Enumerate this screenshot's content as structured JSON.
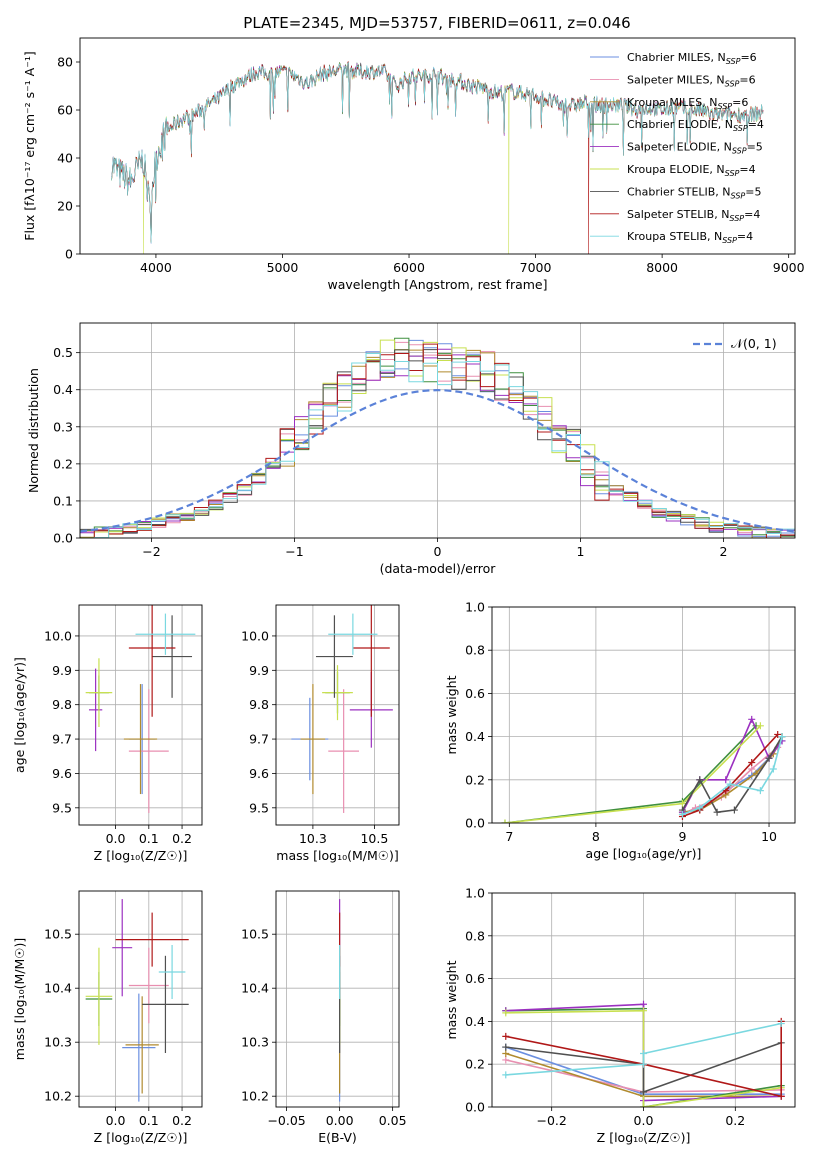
{
  "title": "PLATE=2345, MJD=53757, FIBERID=0611, z=0.046",
  "colors": [
    "#6b8fe0",
    "#e88fb0",
    "#b08a2e",
    "#3f8f3f",
    "#9b30c0",
    "#c8e050",
    "#505050",
    "#b01818",
    "#7ad8e0"
  ],
  "chart_data": [
    {
      "id": "spectrum",
      "type": "line",
      "xlabel": "wavelength [Angstrom, rest frame]",
      "ylabel": "Flux [fλ10⁻¹⁷ erg cm⁻² s⁻¹ A⁻¹]",
      "xlim": [
        3400,
        9050
      ],
      "ylim": [
        0,
        90
      ],
      "xticks": [
        4000,
        5000,
        6000,
        7000,
        8000,
        9000
      ],
      "yticks": [
        0,
        20,
        40,
        60,
        80
      ],
      "continuum": [
        [
          3650,
          38
        ],
        [
          3700,
          34
        ],
        [
          3800,
          30
        ],
        [
          3850,
          35
        ],
        [
          3900,
          40
        ],
        [
          3950,
          20
        ],
        [
          4000,
          40
        ],
        [
          4050,
          48
        ],
        [
          4100,
          52
        ],
        [
          4200,
          56
        ],
        [
          4300,
          58
        ],
        [
          4400,
          62
        ],
        [
          4500,
          65
        ],
        [
          4600,
          70
        ],
        [
          4700,
          73
        ],
        [
          4800,
          76
        ],
        [
          4900,
          75
        ],
        [
          5000,
          76
        ],
        [
          5100,
          74
        ],
        [
          5200,
          71
        ],
        [
          5300,
          75
        ],
        [
          5400,
          76
        ],
        [
          5500,
          77
        ],
        [
          5600,
          76
        ],
        [
          5700,
          76
        ],
        [
          5800,
          76
        ],
        [
          5900,
          70
        ],
        [
          6000,
          74
        ],
        [
          6100,
          74
        ],
        [
          6200,
          75
        ],
        [
          6300,
          73
        ],
        [
          6400,
          72
        ],
        [
          6500,
          70
        ],
        [
          6600,
          69
        ],
        [
          6700,
          67
        ],
        [
          6800,
          68
        ],
        [
          6900,
          67
        ],
        [
          7000,
          66
        ],
        [
          7100,
          64
        ],
        [
          7200,
          62
        ],
        [
          7300,
          62
        ],
        [
          7400,
          63
        ],
        [
          7500,
          62
        ],
        [
          7600,
          62
        ],
        [
          7700,
          62
        ],
        [
          7800,
          60
        ],
        [
          7900,
          61
        ],
        [
          8000,
          60
        ],
        [
          8100,
          61
        ],
        [
          8200,
          60
        ],
        [
          8300,
          60
        ],
        [
          8400,
          58
        ],
        [
          8500,
          58
        ],
        [
          8600,
          58
        ],
        [
          8700,
          58
        ],
        [
          8800,
          59
        ]
      ],
      "dropouts": [
        {
          "series": 5,
          "x": 3900
        },
        {
          "series": 5,
          "x": 6790
        },
        {
          "series": 7,
          "x": 7420
        }
      ],
      "series": [
        {
          "label": "Chabrier MILES, N",
          "ssp": "SSP",
          "eq": "=6"
        },
        {
          "label": "Salpeter MILES, N",
          "ssp": "SSP",
          "eq": "=6"
        },
        {
          "label": "Kroupa MILES, N",
          "ssp": "SSP",
          "eq": "=6"
        },
        {
          "label": "Chabrier ELODIE, N",
          "ssp": "SSP",
          "eq": "=4"
        },
        {
          "label": "Salpeter ELODIE, N",
          "ssp": "SSP",
          "eq": "=5"
        },
        {
          "label": "Kroupa ELODIE, N",
          "ssp": "SSP",
          "eq": "=4"
        },
        {
          "label": "Chabrier STELIB, N",
          "ssp": "SSP",
          "eq": "=5"
        },
        {
          "label": "Salpeter STELIB, N",
          "ssp": "SSP",
          "eq": "=4"
        },
        {
          "label": "Kroupa STELIB, N",
          "ssp": "SSP",
          "eq": "=4"
        }
      ]
    },
    {
      "id": "residuals",
      "type": "histogram",
      "xlabel": "(data-model)/error",
      "ylabel": "Normed distribution",
      "xlim": [
        -2.5,
        2.5
      ],
      "ylim": [
        0,
        0.58
      ],
      "xticks": [
        -2,
        -1,
        0,
        1,
        2
      ],
      "yticks": [
        0.0,
        0.1,
        0.2,
        0.3,
        0.4,
        0.5
      ],
      "legend": "𝒩(0, 1)",
      "bin_edges_from": -2.5,
      "bin_width": 0.1,
      "base_heights": [
        0.01,
        0.015,
        0.02,
        0.025,
        0.03,
        0.04,
        0.05,
        0.06,
        0.07,
        0.09,
        0.11,
        0.13,
        0.16,
        0.2,
        0.24,
        0.28,
        0.32,
        0.36,
        0.4,
        0.44,
        0.47,
        0.48,
        0.49,
        0.48,
        0.47,
        0.47,
        0.46,
        0.46,
        0.45,
        0.43,
        0.4,
        0.36,
        0.32,
        0.28,
        0.24,
        0.2,
        0.16,
        0.13,
        0.11,
        0.09,
        0.07,
        0.06,
        0.05,
        0.04,
        0.03,
        0.025,
        0.02,
        0.015,
        0.012,
        0.01
      ]
    },
    {
      "id": "age_vs_Z",
      "type": "errorbar",
      "xlabel": "Z [log₁₀(Z/Z☉)]",
      "ylabel": "age  [log₁₀(age/yr)]",
      "xlim": [
        -0.11,
        0.26
      ],
      "ylim": [
        9.45,
        10.09
      ],
      "xticks": [
        0.0,
        0.1,
        0.2
      ],
      "yticks": [
        9.5,
        9.6,
        9.7,
        9.8,
        9.9,
        10.0
      ],
      "points": [
        {
          "x": 0.08,
          "y": 9.7,
          "xe": 0.04,
          "ye": 0.16
        },
        {
          "x": 0.1,
          "y": 9.665,
          "xe": 0.06,
          "ye": 0.18
        },
        {
          "x": 0.075,
          "y": 9.7,
          "xe": 0.05,
          "ye": 0.16
        },
        {
          "x": -0.05,
          "y": 9.835,
          "xe": 0.03,
          "ye": 0.05
        },
        {
          "x": -0.06,
          "y": 9.785,
          "xe": 0.02,
          "ye": 0.12
        },
        {
          "x": -0.05,
          "y": 9.835,
          "xe": 0.04,
          "ye": 0.1
        },
        {
          "x": 0.17,
          "y": 9.94,
          "xe": 0.06,
          "ye": 0.12
        },
        {
          "x": 0.11,
          "y": 9.965,
          "xe": 0.07,
          "ye": 0.2
        },
        {
          "x": 0.15,
          "y": 10.005,
          "xe": 0.09,
          "ye": 0.06
        }
      ]
    },
    {
      "id": "age_vs_mass",
      "type": "errorbar",
      "xlabel": "mass [log₁₀(M/M☉)]",
      "ylabel": "",
      "xlim": [
        10.18,
        10.58
      ],
      "ylim": [
        9.45,
        10.09
      ],
      "xticks": [
        10.3,
        10.5
      ],
      "yticks": [
        9.5,
        9.6,
        9.7,
        9.8,
        9.9,
        10.0
      ],
      "points": [
        {
          "x": 10.29,
          "y": 9.7,
          "xe": 0.06,
          "ye": 0.12
        },
        {
          "x": 10.4,
          "y": 9.665,
          "xe": 0.05,
          "ye": 0.18
        },
        {
          "x": 10.3,
          "y": 9.7,
          "xe": 0.04,
          "ye": 0.16
        },
        {
          "x": 10.38,
          "y": 9.835,
          "xe": 0.04,
          "ye": 0.06
        },
        {
          "x": 10.49,
          "y": 9.785,
          "xe": 0.07,
          "ye": 0.11
        },
        {
          "x": 10.38,
          "y": 9.835,
          "xe": 0.05,
          "ye": 0.08
        },
        {
          "x": 10.37,
          "y": 9.94,
          "xe": 0.06,
          "ye": 0.12
        },
        {
          "x": 10.49,
          "y": 9.965,
          "xe": 0.06,
          "ye": 0.2
        },
        {
          "x": 10.43,
          "y": 10.005,
          "xe": 0.08,
          "ye": 0.06
        }
      ]
    },
    {
      "id": "weight_vs_age",
      "type": "line",
      "xlabel": "age  [log₁₀(age/yr)]",
      "ylabel": "mass weight",
      "xlim": [
        6.8,
        10.3
      ],
      "ylim": [
        0.0,
        1.0
      ],
      "xticks": [
        7,
        8,
        9,
        10
      ],
      "yticks": [
        0.0,
        0.2,
        0.4,
        0.6,
        0.8,
        1.0
      ],
      "series": [
        [
          [
            9.0,
            0.05
          ],
          [
            9.2,
            0.06
          ],
          [
            9.5,
            0.15
          ],
          [
            9.8,
            0.22
          ],
          [
            10.0,
            0.3
          ],
          [
            10.15,
            0.38
          ]
        ],
        [
          [
            9.0,
            0.04
          ],
          [
            9.15,
            0.07
          ],
          [
            9.45,
            0.12
          ],
          [
            9.8,
            0.25
          ],
          [
            10.1,
            0.35
          ]
        ],
        [
          [
            9.0,
            0.05
          ],
          [
            9.2,
            0.06
          ],
          [
            9.5,
            0.13
          ],
          [
            9.85,
            0.23
          ],
          [
            10.05,
            0.32
          ],
          [
            10.15,
            0.4
          ]
        ],
        [
          [
            6.95,
            0.0
          ],
          [
            9.0,
            0.1
          ],
          [
            9.85,
            0.45
          ]
        ],
        [
          [
            9.0,
            0.05
          ],
          [
            9.2,
            0.2
          ],
          [
            9.5,
            0.2
          ],
          [
            9.8,
            0.48
          ],
          [
            10.0,
            0.3
          ],
          [
            10.15,
            0.38
          ]
        ],
        [
          [
            6.95,
            0.0
          ],
          [
            9.0,
            0.09
          ],
          [
            9.9,
            0.45
          ]
        ],
        [
          [
            9.0,
            0.06
          ],
          [
            9.2,
            0.2
          ],
          [
            9.4,
            0.05
          ],
          [
            9.6,
            0.06
          ],
          [
            10.0,
            0.3
          ],
          [
            10.15,
            0.4
          ]
        ],
        [
          [
            9.0,
            0.03
          ],
          [
            9.2,
            0.06
          ],
          [
            9.5,
            0.15
          ],
          [
            9.8,
            0.28
          ],
          [
            10.1,
            0.41
          ]
        ],
        [
          [
            9.0,
            0.04
          ],
          [
            9.2,
            0.07
          ],
          [
            9.55,
            0.18
          ],
          [
            9.9,
            0.15
          ],
          [
            10.05,
            0.25
          ],
          [
            10.15,
            0.4
          ]
        ]
      ]
    },
    {
      "id": "mass_vs_Z",
      "type": "errorbar",
      "xlabel": "Z [log₁₀(Z/Z☉)]",
      "ylabel": "mass [log₁₀(M/M☉)]",
      "xlim": [
        -0.11,
        0.26
      ],
      "ylim": [
        10.18,
        10.58
      ],
      "xticks": [
        0.0,
        0.1,
        0.2
      ],
      "yticks": [
        10.2,
        10.3,
        10.4,
        10.5
      ],
      "points": [
        {
          "x": 0.07,
          "y": 10.29,
          "xe": 0.05,
          "ye": 0.1
        },
        {
          "x": 0.1,
          "y": 10.405,
          "xe": 0.06,
          "ye": 0.07
        },
        {
          "x": 0.08,
          "y": 10.295,
          "xe": 0.05,
          "ye": 0.09
        },
        {
          "x": -0.05,
          "y": 10.38,
          "xe": 0.04,
          "ye": 0.05
        },
        {
          "x": 0.02,
          "y": 10.475,
          "xe": 0.03,
          "ye": 0.09
        },
        {
          "x": -0.05,
          "y": 10.385,
          "xe": 0.04,
          "ye": 0.09
        },
        {
          "x": 0.15,
          "y": 10.37,
          "xe": 0.07,
          "ye": 0.09
        },
        {
          "x": 0.11,
          "y": 10.49,
          "xe": 0.11,
          "ye": 0.05
        },
        {
          "x": 0.17,
          "y": 10.43,
          "xe": 0.04,
          "ye": 0.05
        }
      ]
    },
    {
      "id": "mass_vs_ebv",
      "type": "errorbar",
      "xlabel": "E(B-V)",
      "ylabel": "",
      "xlim": [
        -0.06,
        0.056
      ],
      "ylim": [
        10.18,
        10.58
      ],
      "xticks": [
        -0.05,
        0.0,
        0.05
      ],
      "xticklabels": [
        "−0.05",
        "0.00",
        "0.05"
      ],
      "yticks": [
        10.2,
        10.3,
        10.4,
        10.5
      ],
      "points": [
        {
          "x": 0.0,
          "y": 10.29,
          "xe": 0.0,
          "ye": 0.1
        },
        {
          "x": 0.0,
          "y": 10.405,
          "xe": 0.0,
          "ye": 0.07
        },
        {
          "x": 0.0,
          "y": 10.295,
          "xe": 0.0,
          "ye": 0.09
        },
        {
          "x": 0.0,
          "y": 10.38,
          "xe": 0.0,
          "ye": 0.05
        },
        {
          "x": 0.0,
          "y": 10.475,
          "xe": 0.0,
          "ye": 0.09
        },
        {
          "x": 0.0,
          "y": 10.385,
          "xe": 0.0,
          "ye": 0.09
        },
        {
          "x": 0.0,
          "y": 10.37,
          "xe": 0.0,
          "ye": 0.09
        },
        {
          "x": 0.0,
          "y": 10.49,
          "xe": 0.0,
          "ye": 0.05
        },
        {
          "x": 0.0,
          "y": 10.43,
          "xe": 0.0,
          "ye": 0.05
        }
      ]
    },
    {
      "id": "weight_vs_Z",
      "type": "line",
      "xlabel": "Z [log₁₀(Z/Z☉)]",
      "ylabel": "mass weight",
      "xlim": [
        -0.33,
        0.33
      ],
      "ylim": [
        0.0,
        1.0
      ],
      "xticks": [
        -0.2,
        0.0,
        0.2
      ],
      "xticklabels": [
        "−0.2",
        "0.0",
        "0.2"
      ],
      "yticks": [
        0.0,
        0.2,
        0.4,
        0.6,
        0.8,
        1.0
      ],
      "series": [
        [
          [
            -0.3,
            0.28
          ],
          [
            0.0,
            0.06
          ],
          [
            0.3,
            0.06
          ]
        ],
        [
          [
            -0.3,
            0.22
          ],
          [
            0.0,
            0.07
          ],
          [
            0.3,
            0.08
          ]
        ],
        [
          [
            -0.3,
            0.25
          ],
          [
            0.0,
            0.05
          ],
          [
            0.3,
            0.05
          ]
        ],
        [
          [
            -0.3,
            0.45
          ],
          [
            0.0,
            0.46
          ],
          [
            0.0,
            0.0
          ],
          [
            0.3,
            0.1
          ]
        ],
        [
          [
            -0.3,
            0.45
          ],
          [
            0.0,
            0.48
          ],
          [
            0.0,
            0.03
          ],
          [
            0.3,
            0.05
          ]
        ],
        [
          [
            -0.3,
            0.44
          ],
          [
            0.0,
            0.45
          ],
          [
            0.0,
            0.0
          ],
          [
            0.3,
            0.09
          ]
        ],
        [
          [
            -0.3,
            0.28
          ],
          [
            0.0,
            0.2
          ],
          [
            0.0,
            0.07
          ],
          [
            0.3,
            0.3
          ]
        ],
        [
          [
            -0.3,
            0.33
          ],
          [
            0.0,
            0.2
          ],
          [
            0.3,
            0.05
          ],
          [
            0.3,
            0.4
          ]
        ],
        [
          [
            -0.3,
            0.15
          ],
          [
            0.0,
            0.2
          ],
          [
            0.0,
            0.25
          ],
          [
            0.3,
            0.39
          ]
        ]
      ]
    }
  ]
}
